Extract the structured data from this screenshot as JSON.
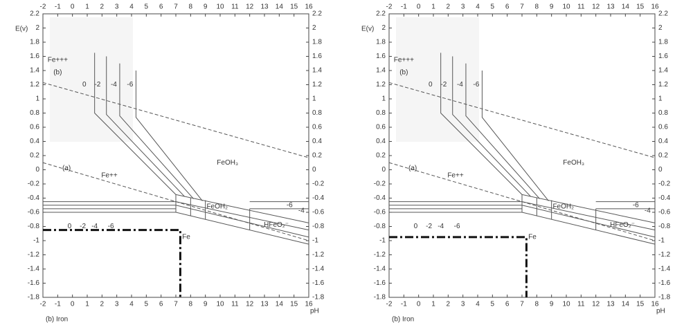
{
  "chart_data": [
    {
      "type": "line",
      "xlabel": "pH",
      "ylabel": "E(v)",
      "caption": "(b) Iron",
      "xlim": [
        -2,
        16
      ],
      "ylim": [
        -1.8,
        2.2
      ],
      "xticks": [
        -2,
        -1,
        0,
        1,
        2,
        3,
        4,
        5,
        6,
        7,
        8,
        9,
        10,
        11,
        12,
        13,
        14,
        15,
        16
      ],
      "yticks": [
        2.2,
        2,
        1.8,
        1.6,
        1.4,
        1.2,
        1,
        0.8,
        0.6,
        0.4,
        0.2,
        0,
        -0.2,
        -0.4,
        -0.6,
        -0.8,
        -1,
        -1.2,
        -1.4,
        -1.6,
        -1.8
      ],
      "annotations": [
        "Fe+++",
        "(b)",
        "0",
        "-2",
        "-4",
        "-6",
        "FeOH₃",
        "(a)",
        "Fe++",
        "FeOH₂",
        "HFeO₂⁻",
        "Fe",
        "0",
        "-2",
        "-4",
        "-6",
        "-6",
        "-4"
      ],
      "x": [
        -2,
        7.3,
        7.3
      ],
      "values": [
        -0.85,
        -0.85,
        -1.8
      ]
    },
    {
      "type": "line",
      "xlabel": "pH",
      "ylabel": "E(v)",
      "caption": "(b) Iron",
      "xlim": [
        -2,
        16
      ],
      "ylim": [
        -1.8,
        2.2
      ],
      "xticks": [
        -2,
        -1,
        0,
        1,
        2,
        3,
        4,
        5,
        6,
        7,
        8,
        9,
        10,
        11,
        12,
        13,
        14,
        15,
        16
      ],
      "yticks": [
        2.2,
        2,
        1.8,
        1.6,
        1.4,
        1.2,
        1,
        0.8,
        0.6,
        0.4,
        0.2,
        0,
        -0.2,
        -0.4,
        -0.6,
        -0.8,
        -1,
        -1.2,
        -1.4,
        -1.6,
        -1.8
      ],
      "annotations": [
        "Fe+++",
        "(b)",
        "0",
        "-2",
        "-4",
        "-6",
        "FeOH₃",
        "(a)",
        "Fe++",
        "FeOH₂",
        "HFeO₂⁻",
        "Fe",
        "0",
        "-2",
        "-4",
        "-6",
        "-6",
        "-4"
      ],
      "x": [
        -2,
        7.3,
        7.3
      ],
      "values": [
        -0.95,
        -0.95,
        -1.8
      ]
    }
  ]
}
